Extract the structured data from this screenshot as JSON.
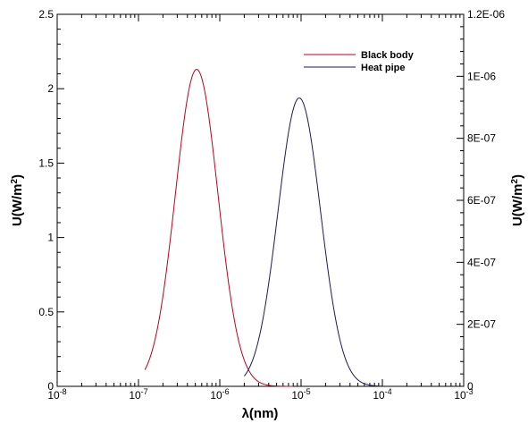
{
  "chart_data": {
    "type": "line",
    "xlabel": "λ(nm)",
    "ylabel_left_base": "U(W/m",
    "ylabel_left_sup": "2",
    "ylabel_left_close": ")",
    "ylabel_right_base": "U(W/m",
    "ylabel_right_sup": "2",
    "ylabel_right_close": ")",
    "x_scale": "log",
    "xlim": [
      1e-08,
      0.001
    ],
    "x_ticks": [
      {
        "base": "10",
        "exp": "-8"
      },
      {
        "base": "10",
        "exp": "-7"
      },
      {
        "base": "10",
        "exp": "-6"
      },
      {
        "base": "10",
        "exp": "-5"
      },
      {
        "base": "10",
        "exp": "-4"
      },
      {
        "base": "10",
        "exp": "-3"
      }
    ],
    "ylim_left": [
      0,
      2.5
    ],
    "yticks_left": [
      "0",
      "0.5",
      "1",
      "1.5",
      "2",
      "2.5"
    ],
    "ylim_right": [
      0,
      1.2e-06
    ],
    "yticks_right": [
      "0",
      "2E-07",
      "4E-07",
      "6E-07",
      "8E-07",
      "1E-06",
      "1.2E-06"
    ],
    "grid": false,
    "legend_position": "top-right",
    "series": [
      {
        "name": "Black body",
        "color": "#c0001a",
        "axis": "left",
        "peak_x": 5.2e-07,
        "peak_y": 2.13,
        "spread_decades": 0.262,
        "range": [
          1.2e-07,
          8e-06
        ]
      },
      {
        "name": "Heat pipe",
        "color": "#1a1a5e",
        "axis": "right",
        "peak_x": 9.5e-06,
        "peak_y": 9.3e-07,
        "spread_decades": 0.262,
        "range": [
          2e-06,
          0.0001
        ]
      }
    ]
  }
}
